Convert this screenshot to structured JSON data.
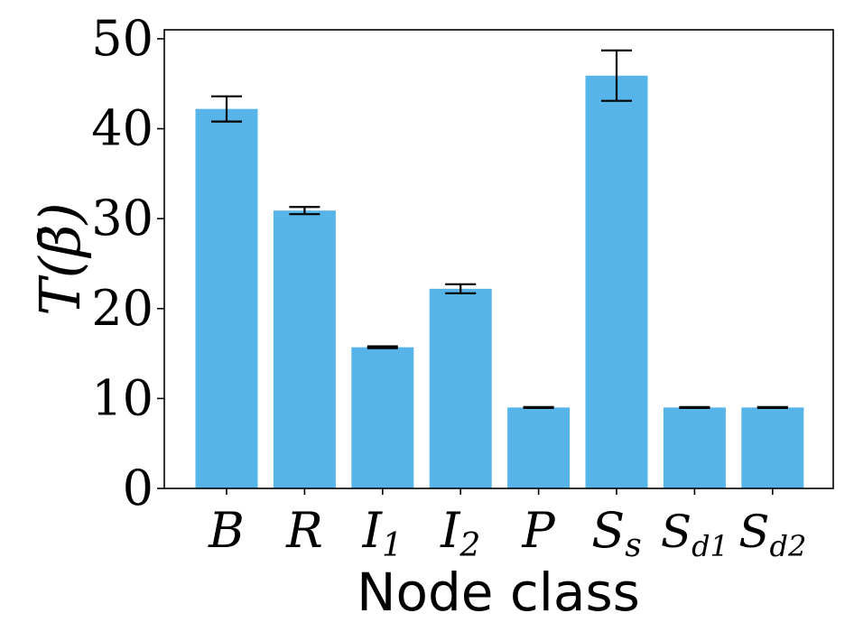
{
  "chart_data": {
    "type": "bar",
    "categories": [
      {
        "base": "B",
        "sub": ""
      },
      {
        "base": "R",
        "sub": ""
      },
      {
        "base": "I",
        "sub": "1"
      },
      {
        "base": "I",
        "sub": "2"
      },
      {
        "base": "P",
        "sub": ""
      },
      {
        "base": "S",
        "sub": "s"
      },
      {
        "base": "S",
        "sub": "d1"
      },
      {
        "base": "S",
        "sub": "d2"
      }
    ],
    "values": [
      42.2,
      30.9,
      15.7,
      22.2,
      9.0,
      45.9,
      9.0,
      9.0
    ],
    "errors": [
      1.4,
      0.4,
      0.1,
      0.5,
      0.05,
      2.8,
      0.05,
      0.05
    ],
    "xlabel": "Node class",
    "ylabel": "T(β̄)",
    "ylim": [
      0,
      51
    ],
    "yticks": [
      0,
      10,
      20,
      30,
      40,
      50
    ],
    "bar_color": "#56b4e9",
    "grid": false
  }
}
